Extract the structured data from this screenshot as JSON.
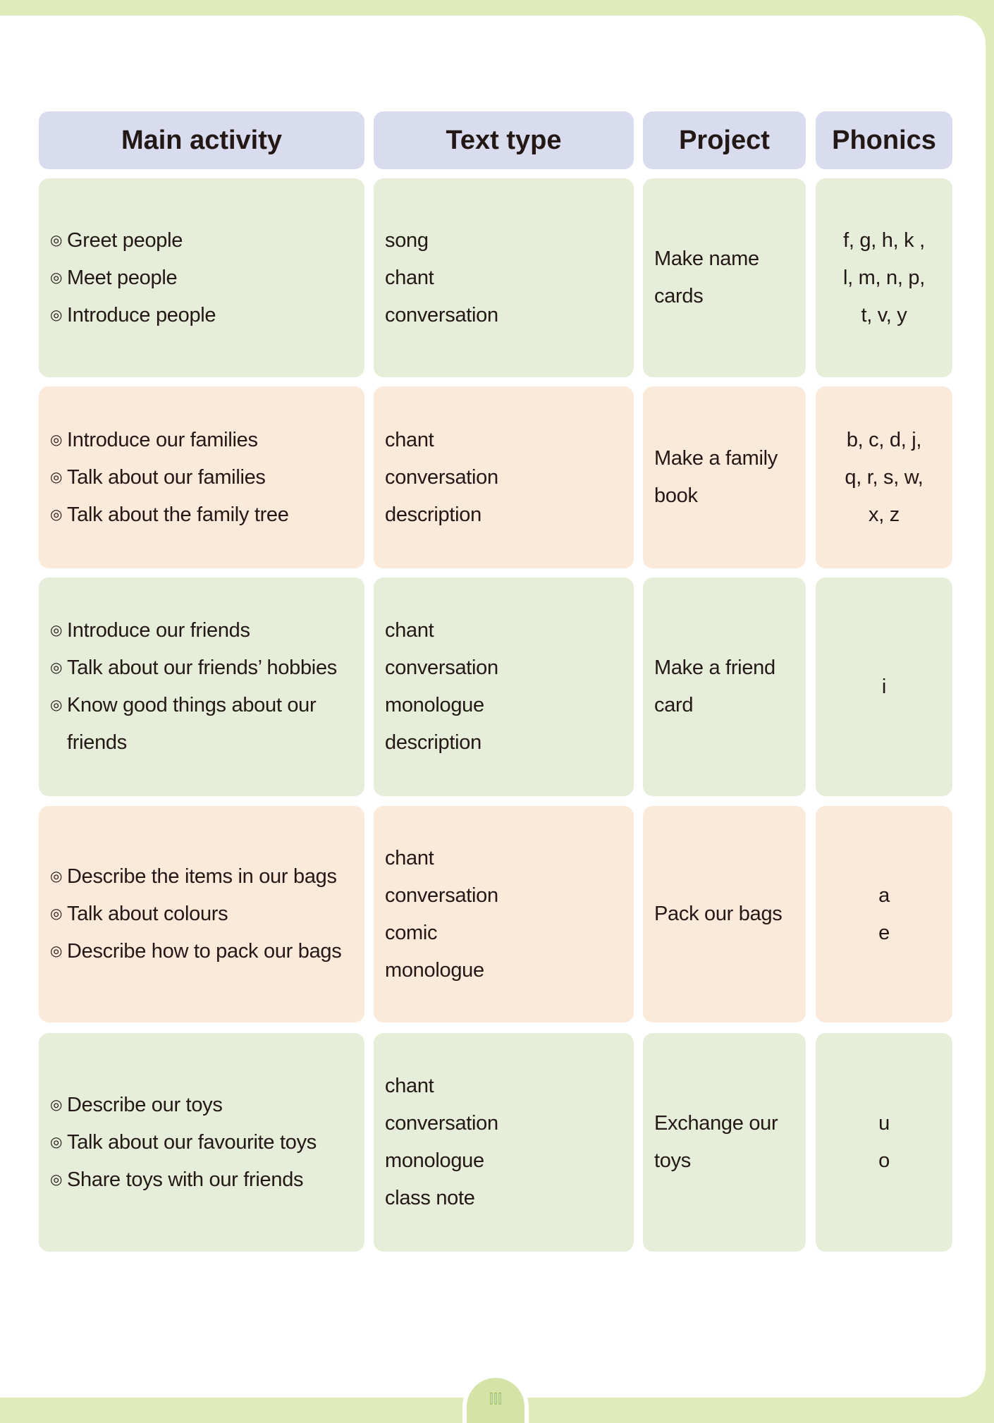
{
  "headers": [
    "Main activity",
    "Text type",
    "Project",
    "Phonics"
  ],
  "rows": [
    {
      "activities": [
        "Greet people",
        "Meet people",
        "Introduce people"
      ],
      "text_types": [
        "song",
        "chant",
        "conversation"
      ],
      "project": "Make name cards",
      "phonics": [
        "f, g, h, k ,",
        "l, m, n, p,",
        "t, v, y"
      ]
    },
    {
      "activities": [
        "Introduce our families",
        "Talk about our families",
        "Talk about the family tree"
      ],
      "text_types": [
        "chant",
        "conversation",
        "description"
      ],
      "project": "Make a family book",
      "phonics": [
        "b, c, d, j,",
        "q, r, s, w,",
        "x, z"
      ]
    },
    {
      "activities": [
        "Introduce our friends",
        "Talk about our friends’ hobbies",
        "Know good things about our friends"
      ],
      "text_types": [
        "chant",
        "conversation",
        "monologue",
        "description"
      ],
      "project": "Make a friend card",
      "phonics": [
        "i"
      ]
    },
    {
      "activities": [
        "Describe the items in our bags",
        "Talk about colours",
        "Describe how to pack our bags"
      ],
      "text_types": [
        "chant",
        "conversation",
        "comic",
        "monologue"
      ],
      "project": "Pack our bags",
      "phonics": [
        "a",
        "e"
      ]
    },
    {
      "activities": [
        "Describe our toys",
        "Talk about our favourite toys",
        "Share toys with our friends"
      ],
      "text_types": [
        "chant",
        "conversation",
        "monologue",
        "class note"
      ],
      "project": "Exchange our toys",
      "phonics": [
        "u",
        "o"
      ]
    }
  ],
  "bullet": "◎",
  "page_number": "III",
  "colors": {
    "header": "#d9dbef",
    "row_green": "#e6eed9",
    "row_peach": "#fbe9da",
    "band": "#e0ebbb"
  }
}
